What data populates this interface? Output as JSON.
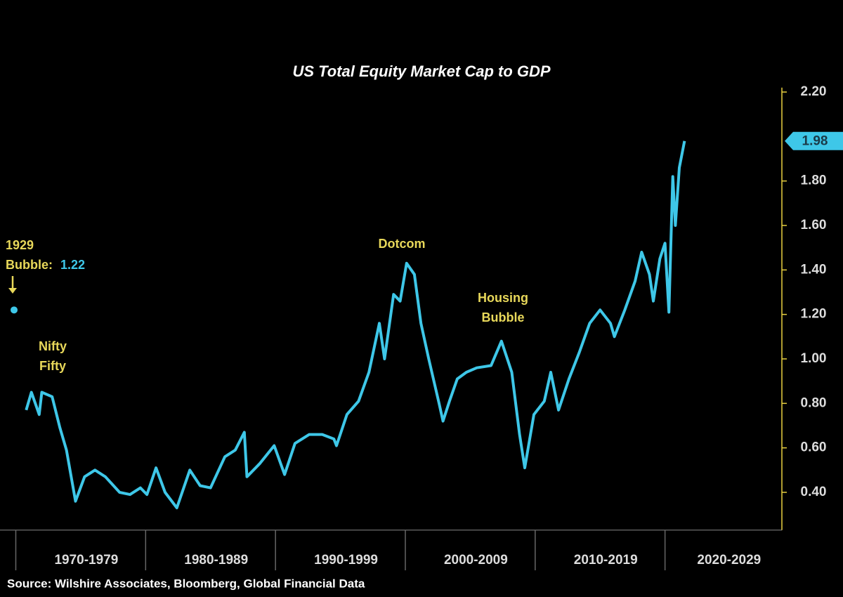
{
  "chart_data": {
    "type": "line",
    "title": "US Total Equity Market Cap to GDP",
    "source": "Source: Wilshire Associates, Bloomberg, Global Financial Data",
    "color": "#3ec7e8",
    "x": [
      1970.8,
      1971.2,
      1971.8,
      1972.0,
      1972.8,
      1973.4,
      1973.9,
      1974.6,
      1975.3,
      1976.1,
      1976.9,
      1978.0,
      1978.8,
      1979.6,
      1980.1,
      1980.8,
      1981.5,
      1982.4,
      1983.4,
      1984.2,
      1985.0,
      1986.1,
      1986.9,
      1987.6,
      1987.8,
      1988.8,
      1989.9,
      1990.7,
      1991.5,
      1992.6,
      1993.6,
      1994.5,
      1994.7,
      1995.5,
      1996.4,
      1997.2,
      1998.0,
      1998.4,
      1999.1,
      1999.6,
      2000.1,
      2000.7,
      2001.2,
      2001.8,
      2002.6,
      2002.9,
      2003.4,
      2004.0,
      2004.7,
      2005.5,
      2006.6,
      2007.4,
      2008.2,
      2008.8,
      2009.2,
      2009.9,
      2010.7,
      2011.2,
      2011.8,
      2012.6,
      2013.4,
      2014.2,
      2015.0,
      2015.8,
      2016.1,
      2016.9,
      2017.7,
      2018.2,
      2018.8,
      2019.1,
      2019.6,
      2020.0,
      2020.3,
      2020.6,
      2020.8,
      2021.1,
      2021.5
    ],
    "values": [
      0.77,
      0.85,
      0.75,
      0.85,
      0.83,
      0.69,
      0.59,
      0.36,
      0.47,
      0.5,
      0.47,
      0.4,
      0.39,
      0.42,
      0.39,
      0.51,
      0.4,
      0.33,
      0.5,
      0.43,
      0.42,
      0.56,
      0.59,
      0.67,
      0.47,
      0.53,
      0.61,
      0.48,
      0.62,
      0.66,
      0.66,
      0.64,
      0.61,
      0.75,
      0.81,
      0.94,
      1.16,
      1.0,
      1.29,
      1.26,
      1.43,
      1.38,
      1.16,
      1.0,
      0.8,
      0.72,
      0.81,
      0.91,
      0.94,
      0.96,
      0.97,
      1.08,
      0.94,
      0.66,
      0.51,
      0.75,
      0.81,
      0.94,
      0.77,
      0.91,
      1.03,
      1.16,
      1.22,
      1.16,
      1.1,
      1.22,
      1.35,
      1.48,
      1.38,
      1.26,
      1.45,
      1.52,
      1.21,
      1.82,
      1.6,
      1.86,
      1.98
    ],
    "xlim": [
      1969,
      2029
    ],
    "xticks": [
      1970,
      1980,
      1990,
      2000,
      2010,
      2020
    ],
    "categories": [
      "1970-1979",
      "1980-1989",
      "1990-1999",
      "2000-2009",
      "2010-2019",
      "2020-2029"
    ],
    "ylim": [
      0.23,
      2.22
    ],
    "yticks": [
      {
        "value": 0.4,
        "label": "0.40"
      },
      {
        "value": 0.6,
        "label": "0.60"
      },
      {
        "value": 0.8,
        "label": "0.80"
      },
      {
        "value": 1.0,
        "label": "1.00"
      },
      {
        "value": 1.2,
        "label": "1.20"
      },
      {
        "value": 1.4,
        "label": "1.40"
      },
      {
        "value": 1.6,
        "label": "1.60"
      },
      {
        "value": 1.8,
        "label": "1.80"
      },
      {
        "value": 2.2,
        "label": "2.20"
      }
    ],
    "annotations": [
      {
        "lines": [
          "1929",
          "Bubble:"
        ],
        "value": 1.22
      },
      {
        "lines": [
          "Nifty",
          "Fifty"
        ]
      },
      {
        "lines": [
          "Dotcom"
        ]
      },
      {
        "lines": [
          "Housing",
          "Bubble"
        ]
      }
    ]
  }
}
